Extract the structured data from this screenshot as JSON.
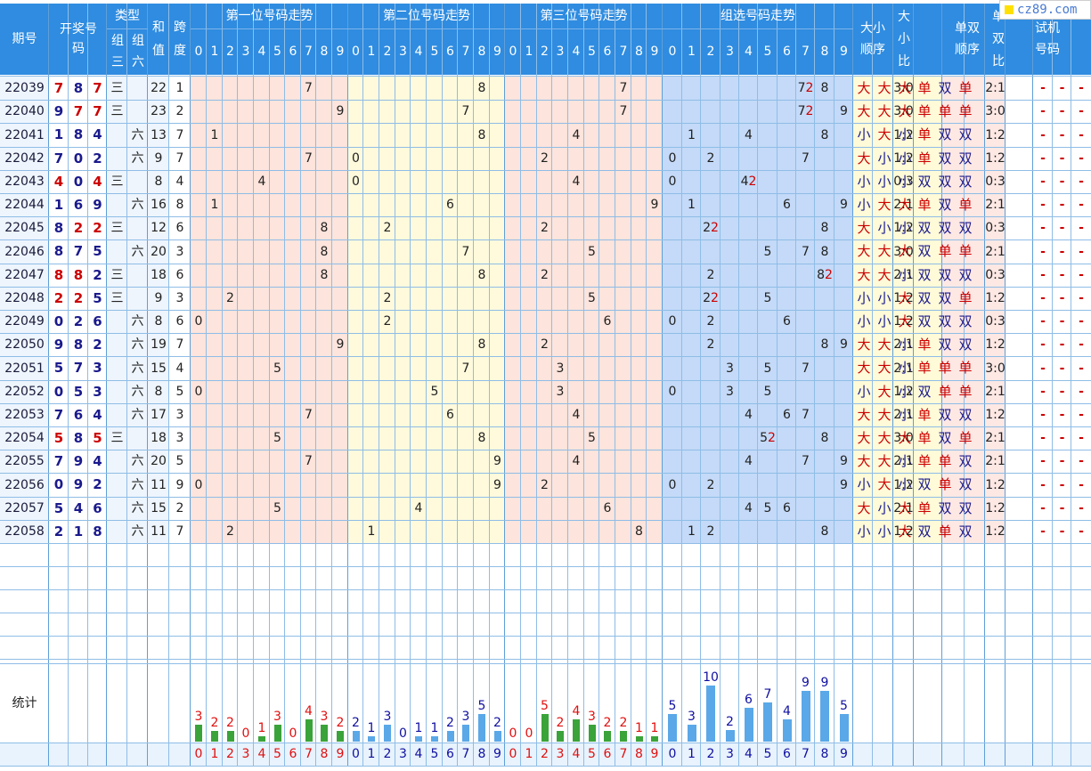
{
  "logo_text": "cz89.com",
  "headers": {
    "issue": "期号",
    "draw": "开奖号码",
    "type": "类型",
    "group3": "组三",
    "group6": "组六",
    "sum": "和值",
    "span": "跨度",
    "pos1": "第一位号码走势",
    "pos2": "第二位号码走势",
    "pos3": "第三位号码走势",
    "group": "组选号码走势",
    "big_small_seq": "大小顺序",
    "big_small_ratio": "大小比",
    "odd_even_seq": "单双顺序",
    "odd_even_ratio": "单双比",
    "test": "试机号码",
    "digits": [
      "0",
      "1",
      "2",
      "3",
      "4",
      "5",
      "6",
      "7",
      "8",
      "9"
    ],
    "stats_label": "统计"
  },
  "rows": [
    {
      "issue": "22039",
      "draw": [
        "7",
        "8",
        "7"
      ],
      "type": "三",
      "sum": "22",
      "span": "1",
      "bs": [
        "大",
        "大",
        "大"
      ],
      "bs_ratio": "3:0",
      "oe": [
        "单",
        "双",
        "单"
      ],
      "oe_ratio": "2:1",
      "test": [
        "-",
        "-",
        "-"
      ]
    },
    {
      "issue": "22040",
      "draw": [
        "9",
        "7",
        "7"
      ],
      "type": "三",
      "sum": "23",
      "span": "2",
      "bs": [
        "大",
        "大",
        "大"
      ],
      "bs_ratio": "3:0",
      "oe": [
        "单",
        "单",
        "单"
      ],
      "oe_ratio": "3:0",
      "test": [
        "-",
        "-",
        "-"
      ]
    },
    {
      "issue": "22041",
      "draw": [
        "1",
        "8",
        "4"
      ],
      "type": "六",
      "sum": "13",
      "span": "7",
      "bs": [
        "小",
        "大",
        "小"
      ],
      "bs_ratio": "1:2",
      "oe": [
        "单",
        "双",
        "双"
      ],
      "oe_ratio": "1:2",
      "test": [
        "-",
        "-",
        "-"
      ]
    },
    {
      "issue": "22042",
      "draw": [
        "7",
        "0",
        "2"
      ],
      "type": "六",
      "sum": "9",
      "span": "7",
      "bs": [
        "大",
        "小",
        "小"
      ],
      "bs_ratio": "1:2",
      "oe": [
        "单",
        "双",
        "双"
      ],
      "oe_ratio": "1:2",
      "test": [
        "-",
        "-",
        "-"
      ]
    },
    {
      "issue": "22043",
      "draw": [
        "4",
        "0",
        "4"
      ],
      "type": "三",
      "sum": "8",
      "span": "4",
      "bs": [
        "小",
        "小",
        "小"
      ],
      "bs_ratio": "0:3",
      "oe": [
        "双",
        "双",
        "双"
      ],
      "oe_ratio": "0:3",
      "test": [
        "-",
        "-",
        "-"
      ]
    },
    {
      "issue": "22044",
      "draw": [
        "1",
        "6",
        "9"
      ],
      "type": "六",
      "sum": "16",
      "span": "8",
      "bs": [
        "小",
        "大",
        "大"
      ],
      "bs_ratio": "2:1",
      "oe": [
        "单",
        "双",
        "单"
      ],
      "oe_ratio": "2:1",
      "test": [
        "-",
        "-",
        "-"
      ]
    },
    {
      "issue": "22045",
      "draw": [
        "8",
        "2",
        "2"
      ],
      "type": "三",
      "sum": "12",
      "span": "6",
      "bs": [
        "大",
        "小",
        "小"
      ],
      "bs_ratio": "1:2",
      "oe": [
        "双",
        "双",
        "双"
      ],
      "oe_ratio": "0:3",
      "test": [
        "-",
        "-",
        "-"
      ]
    },
    {
      "issue": "22046",
      "draw": [
        "8",
        "7",
        "5"
      ],
      "type": "六",
      "sum": "20",
      "span": "3",
      "bs": [
        "大",
        "大",
        "大"
      ],
      "bs_ratio": "3:0",
      "oe": [
        "双",
        "单",
        "单"
      ],
      "oe_ratio": "2:1",
      "test": [
        "-",
        "-",
        "-"
      ]
    },
    {
      "issue": "22047",
      "draw": [
        "8",
        "8",
        "2"
      ],
      "type": "三",
      "sum": "18",
      "span": "6",
      "bs": [
        "大",
        "大",
        "小"
      ],
      "bs_ratio": "2:1",
      "oe": [
        "双",
        "双",
        "双"
      ],
      "oe_ratio": "0:3",
      "test": [
        "-",
        "-",
        "-"
      ]
    },
    {
      "issue": "22048",
      "draw": [
        "2",
        "2",
        "5"
      ],
      "type": "三",
      "sum": "9",
      "span": "3",
      "bs": [
        "小",
        "小",
        "大"
      ],
      "bs_ratio": "1:2",
      "oe": [
        "双",
        "双",
        "单"
      ],
      "oe_ratio": "1:2",
      "test": [
        "-",
        "-",
        "-"
      ]
    },
    {
      "issue": "22049",
      "draw": [
        "0",
        "2",
        "6"
      ],
      "type": "六",
      "sum": "8",
      "span": "6",
      "bs": [
        "小",
        "小",
        "大"
      ],
      "bs_ratio": "1:2",
      "oe": [
        "双",
        "双",
        "双"
      ],
      "oe_ratio": "0:3",
      "test": [
        "-",
        "-",
        "-"
      ]
    },
    {
      "issue": "22050",
      "draw": [
        "9",
        "8",
        "2"
      ],
      "type": "六",
      "sum": "19",
      "span": "7",
      "bs": [
        "大",
        "大",
        "小"
      ],
      "bs_ratio": "2:1",
      "oe": [
        "单",
        "双",
        "双"
      ],
      "oe_ratio": "1:2",
      "test": [
        "-",
        "-",
        "-"
      ]
    },
    {
      "issue": "22051",
      "draw": [
        "5",
        "7",
        "3"
      ],
      "type": "六",
      "sum": "15",
      "span": "4",
      "bs": [
        "大",
        "大",
        "小"
      ],
      "bs_ratio": "2:1",
      "oe": [
        "单",
        "单",
        "单"
      ],
      "oe_ratio": "3:0",
      "test": [
        "-",
        "-",
        "-"
      ]
    },
    {
      "issue": "22052",
      "draw": [
        "0",
        "5",
        "3"
      ],
      "type": "六",
      "sum": "8",
      "span": "5",
      "bs": [
        "小",
        "大",
        "小"
      ],
      "bs_ratio": "1:2",
      "oe": [
        "双",
        "单",
        "单"
      ],
      "oe_ratio": "2:1",
      "test": [
        "-",
        "-",
        "-"
      ]
    },
    {
      "issue": "22053",
      "draw": [
        "7",
        "6",
        "4"
      ],
      "type": "六",
      "sum": "17",
      "span": "3",
      "bs": [
        "大",
        "大",
        "小"
      ],
      "bs_ratio": "2:1",
      "oe": [
        "单",
        "双",
        "双"
      ],
      "oe_ratio": "1:2",
      "test": [
        "-",
        "-",
        "-"
      ]
    },
    {
      "issue": "22054",
      "draw": [
        "5",
        "8",
        "5"
      ],
      "type": "三",
      "sum": "18",
      "span": "3",
      "bs": [
        "大",
        "大",
        "大"
      ],
      "bs_ratio": "3:0",
      "oe": [
        "单",
        "双",
        "单"
      ],
      "oe_ratio": "2:1",
      "test": [
        "-",
        "-",
        "-"
      ]
    },
    {
      "issue": "22055",
      "draw": [
        "7",
        "9",
        "4"
      ],
      "type": "六",
      "sum": "20",
      "span": "5",
      "bs": [
        "大",
        "大",
        "小"
      ],
      "bs_ratio": "2:1",
      "oe": [
        "单",
        "单",
        "双"
      ],
      "oe_ratio": "2:1",
      "test": [
        "-",
        "-",
        "-"
      ]
    },
    {
      "issue": "22056",
      "draw": [
        "0",
        "9",
        "2"
      ],
      "type": "六",
      "sum": "11",
      "span": "9",
      "bs": [
        "小",
        "大",
        "小"
      ],
      "bs_ratio": "1:2",
      "oe": [
        "双",
        "单",
        "双"
      ],
      "oe_ratio": "1:2",
      "test": [
        "-",
        "-",
        "-"
      ]
    },
    {
      "issue": "22057",
      "draw": [
        "5",
        "4",
        "6"
      ],
      "type": "六",
      "sum": "15",
      "span": "2",
      "bs": [
        "大",
        "小",
        "大"
      ],
      "bs_ratio": "2:1",
      "oe": [
        "单",
        "双",
        "双"
      ],
      "oe_ratio": "1:2",
      "test": [
        "-",
        "-",
        "-"
      ]
    },
    {
      "issue": "22058",
      "draw": [
        "2",
        "1",
        "8"
      ],
      "type": "六",
      "sum": "11",
      "span": "7",
      "bs": [
        "小",
        "小",
        "大"
      ],
      "bs_ratio": "1:2",
      "oe": [
        "双",
        "单",
        "双"
      ],
      "oe_ratio": "1:2",
      "test": [
        "-",
        "-",
        "-"
      ]
    }
  ],
  "group_marks": [
    [
      "7",
      "2"
    ],
    [
      "7",
      "2"
    ],
    null,
    null,
    [
      "4",
      "2"
    ],
    null,
    [
      "2",
      "2"
    ],
    null,
    [
      "8",
      "2"
    ],
    [
      "2",
      "2"
    ],
    null,
    null,
    null,
    null,
    null,
    [
      "5",
      "2"
    ],
    null,
    null,
    null,
    null
  ],
  "stats": {
    "pos1": [
      "3",
      "2",
      "2",
      "0",
      "1",
      "3",
      "0",
      "4",
      "3",
      "2"
    ],
    "pos2": [
      "2",
      "1",
      "3",
      "0",
      "1",
      "1",
      "2",
      "3",
      "5",
      "2"
    ],
    "pos3": [
      "0",
      "0",
      "5",
      "2",
      "4",
      "3",
      "2",
      "2",
      "1",
      "1"
    ],
    "group": [
      "5",
      "3",
      "10",
      "2",
      "6",
      "7",
      "4",
      "9",
      "9",
      "5"
    ]
  },
  "colors": {
    "header_bg": "#2f8ce0",
    "pos1_bg": "#fde4dc",
    "pos2_bg": "#fffadc",
    "pos3_bg": "#fde4dc",
    "group_bg": "#c4daf8",
    "draw_bg": "#ffffff",
    "digit_red": "#cc0000",
    "digit_blue": "#1a1a8c",
    "stat_red": "#e01010",
    "stat_blue": "#1010a0",
    "bar_green": "#3aa33a",
    "bar_blue": "#5aa8e8"
  }
}
